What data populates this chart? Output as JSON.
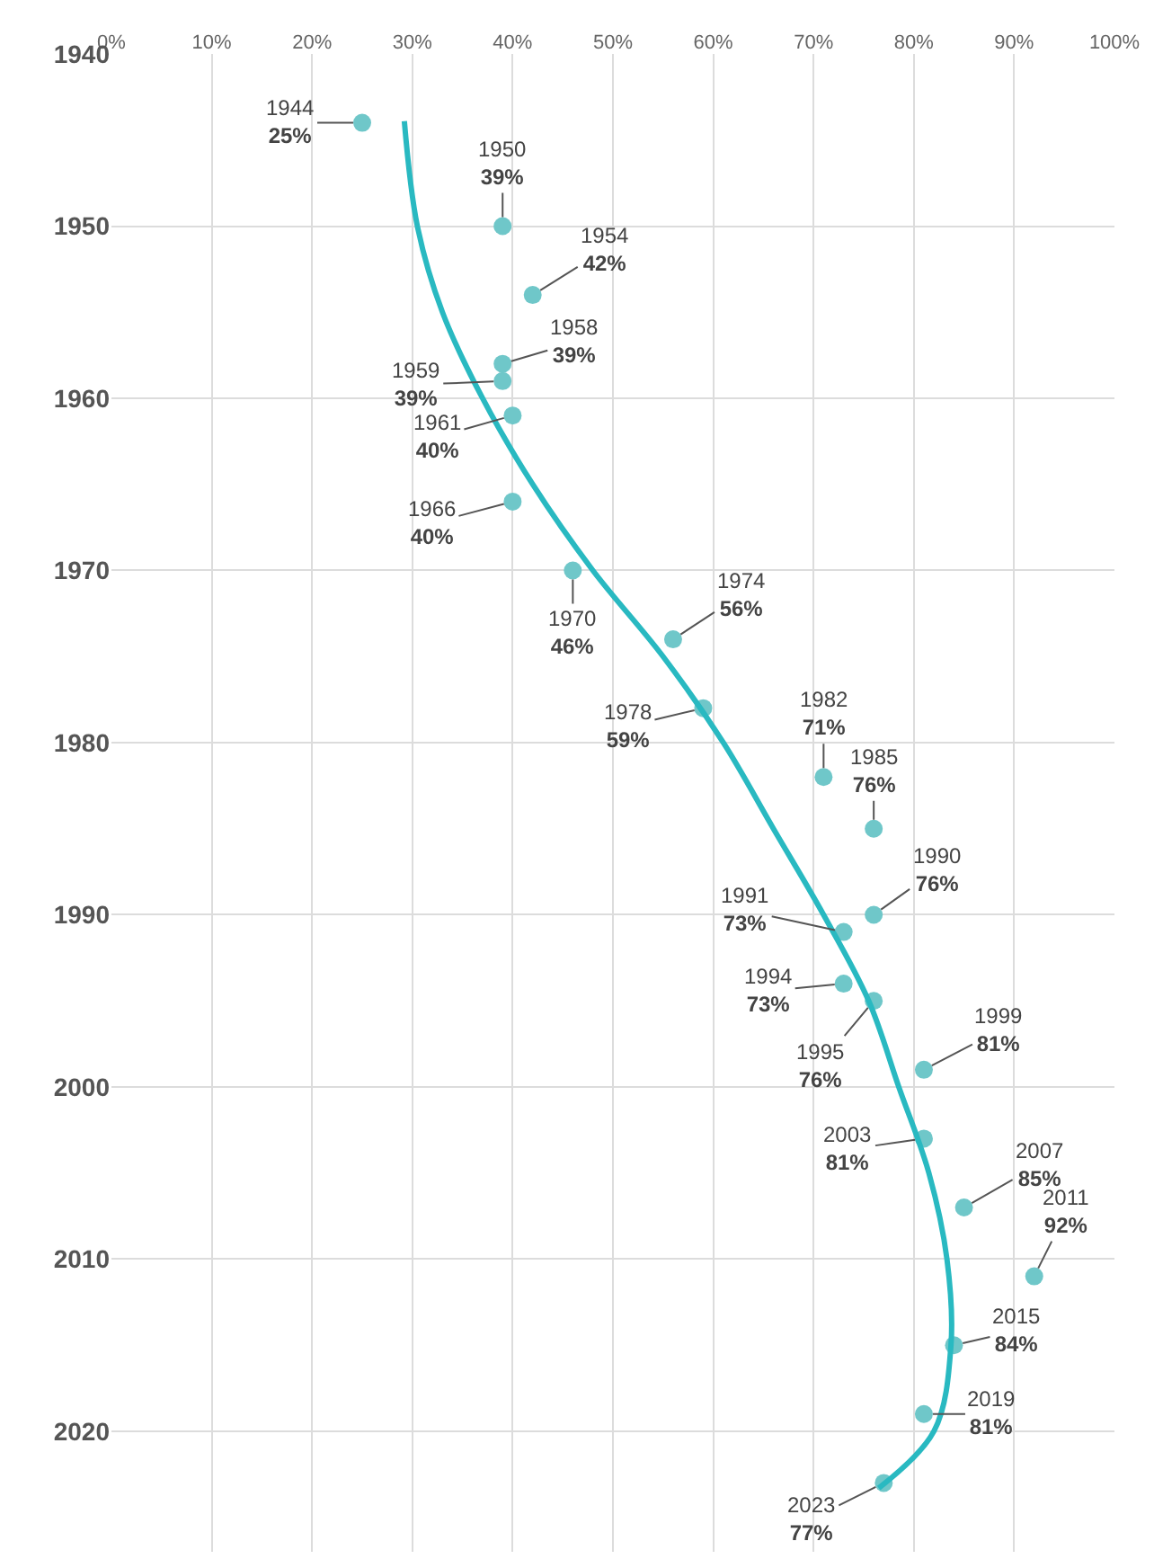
{
  "chart_data": {
    "type": "scatter",
    "marker": "circle",
    "grid": true,
    "xlim": [
      0,
      100
    ],
    "xticks": [
      {
        "value": 0,
        "label": "0%"
      },
      {
        "value": 10,
        "label": "10%"
      },
      {
        "value": 20,
        "label": "20%"
      },
      {
        "value": 30,
        "label": "30%"
      },
      {
        "value": 40,
        "label": "40%"
      },
      {
        "value": 50,
        "label": "50%"
      },
      {
        "value": 60,
        "label": "60%"
      },
      {
        "value": 70,
        "label": "70%"
      },
      {
        "value": 80,
        "label": "80%"
      },
      {
        "value": 90,
        "label": "90%"
      },
      {
        "value": 100,
        "label": "100%"
      }
    ],
    "ylim": [
      2027,
      1940
    ],
    "yticks": [
      1940,
      1950,
      1960,
      1970,
      1980,
      1990,
      2000,
      2010,
      2020
    ],
    "series": [
      {
        "color": "#6fc7c9",
        "x": [
          25,
          39,
          42,
          39,
          39,
          40,
          40,
          46,
          56,
          59,
          71,
          76,
          76,
          73,
          73,
          76,
          81,
          81,
          85,
          92,
          84,
          81,
          77
        ],
        "values": [
          1944,
          1950,
          1954,
          1958,
          1959,
          1961,
          1966,
          1970,
          1974,
          1978,
          1982,
          1985,
          1990,
          1991,
          1994,
          1995,
          1999,
          2003,
          2007,
          2011,
          2015,
          2019,
          2023
        ],
        "value_labels": [
          "1944\n25%",
          "1950\n39%",
          "1954\n42%",
          "1958\n39%",
          "1959\n39%",
          "1961\n40%",
          "1966\n40%",
          "1970\n46%",
          "1974\n56%",
          "1978\n59%",
          "1982\n71%",
          "1985\n76%",
          "1990\n76%",
          "1991\n73%",
          "1994\n73%",
          "1995\n76%",
          "1999\n81%",
          "2003\n81%",
          "2007\n85%",
          "2011\n92%",
          "2015\n84%",
          "2019\n81%",
          "2023\n77%"
        ]
      },
      {
        "type": "line",
        "marker": "none",
        "color": "#29b9c1",
        "x": [
          29.2,
          30.5,
          33,
          37,
          42,
          48,
          55,
          61,
          66,
          71,
          75.5,
          78.5,
          81.5,
          83.3,
          83.7,
          82,
          76.5
        ],
        "values": [
          1943.9,
          1950,
          1955,
          1960,
          1965,
          1970,
          1975,
          1980,
          1985,
          1990,
          1995,
          2000,
          2005,
          2010,
          2015,
          2020,
          2023.3
        ]
      }
    ]
  }
}
